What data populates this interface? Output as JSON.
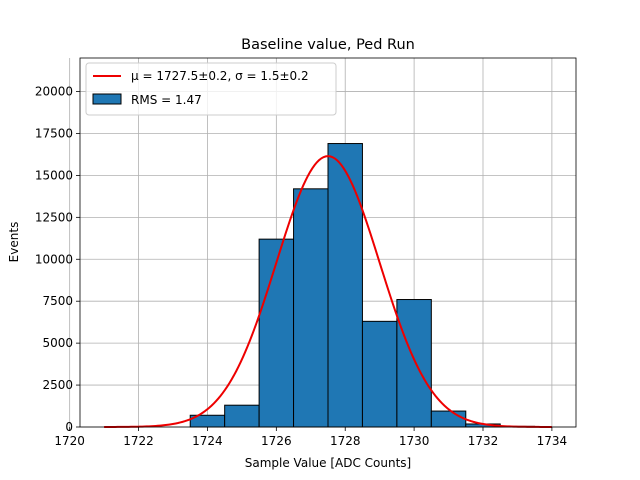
{
  "chart_data": {
    "type": "bar",
    "title": "Baseline value, Ped Run",
    "xlabel": "Sample Value [ADC Counts]",
    "ylabel": "Events",
    "xlim": [
      1720.3,
      1734.7
    ],
    "ylim": [
      0,
      22000
    ],
    "x_ticks": [
      1720,
      1722,
      1724,
      1726,
      1728,
      1730,
      1732,
      1734
    ],
    "y_ticks": [
      0,
      2500,
      5000,
      7500,
      10000,
      12500,
      15000,
      17500,
      20000
    ],
    "grid": true,
    "legend_position": "top-left",
    "histogram": {
      "series_name": "RMS = 1.47",
      "color": "#1f77b4",
      "bin_edges": [
        1720.5,
        1721.5,
        1722.5,
        1723.5,
        1724.5,
        1725.5,
        1726.5,
        1727.5,
        1728.5,
        1729.5,
        1730.5,
        1731.5,
        1732.5,
        1733.5,
        1734.0
      ],
      "counts": [
        0,
        0,
        0,
        700,
        1300,
        11200,
        14200,
        16900,
        6300,
        7600,
        950,
        180,
        40,
        0
      ]
    },
    "fit": {
      "series_name_prefix": "μ = 1727.5±0.2, σ = 1.5±0.2",
      "color": "#ee0000",
      "mu": 1727.5,
      "sigma": 1.5,
      "amplitude": 16150,
      "x_range": [
        1721,
        1734
      ]
    }
  }
}
